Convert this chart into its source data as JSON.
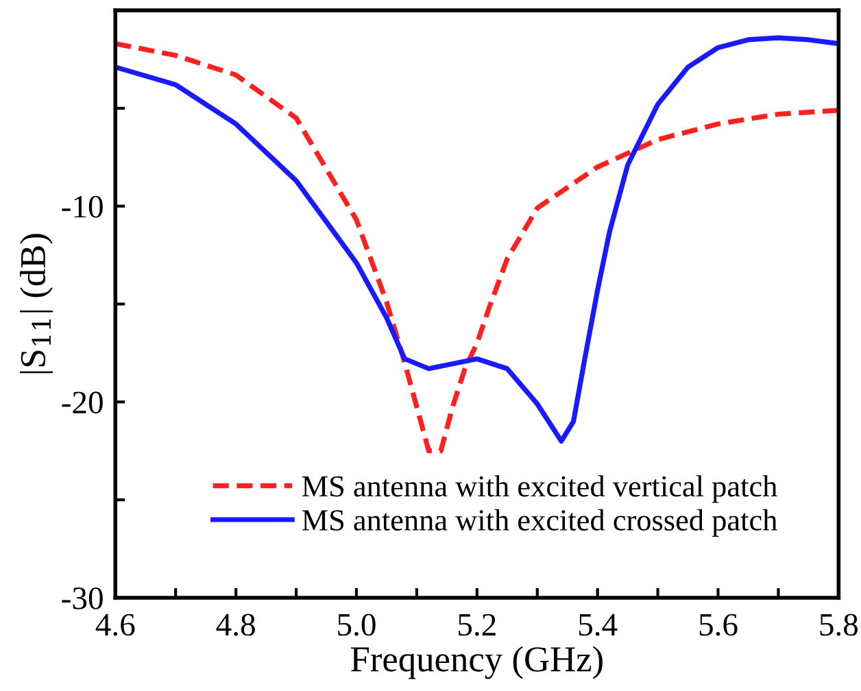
{
  "chart_data": {
    "type": "line",
    "xlabel": "Frequency (GHz)",
    "ylabel": "|S$_{11}$| (dB)",
    "xlim": [
      4.6,
      5.8
    ],
    "ylim": [
      -30,
      0
    ],
    "xticks": [
      {
        "value": 4.6,
        "label": "4.6"
      },
      {
        "value": 4.7,
        "label": null
      },
      {
        "value": 4.8,
        "label": "4.8"
      },
      {
        "value": 4.9,
        "label": null
      },
      {
        "value": 5.0,
        "label": "5.0"
      },
      {
        "value": 5.1,
        "label": null
      },
      {
        "value": 5.2,
        "label": "5.2"
      },
      {
        "value": 5.3,
        "label": null
      },
      {
        "value": 5.4,
        "label": "5.4"
      },
      {
        "value": 5.5,
        "label": null
      },
      {
        "value": 5.6,
        "label": "5.6"
      },
      {
        "value": 5.7,
        "label": null
      },
      {
        "value": 5.8,
        "label": "5.8"
      }
    ],
    "yticks": [
      -30,
      {
        "value": -25,
        "label": null
      },
      -20,
      {
        "value": -15,
        "label": null
      },
      -10,
      {
        "value": -5,
        "label": null
      }
    ],
    "grid": false,
    "legend": "bottom right",
    "marker": "none",
    "series": [
      {
        "name": "MS antenna with excited vertical patch",
        "color": "#ff2020",
        "line_style": "dashed",
        "x": [
          4.6,
          4.7,
          4.8,
          4.9,
          5.0,
          5.05,
          5.08,
          5.12,
          5.14,
          5.16,
          5.18,
          5.2,
          5.22,
          5.25,
          5.3,
          5.4,
          5.5,
          5.6,
          5.7,
          5.8
        ],
        "values": [
          -1.7,
          -2.3,
          -3.3,
          -5.5,
          -10.7,
          -14.9,
          -18.0,
          -22.5,
          -22.5,
          -20.2,
          -18.3,
          -17.0,
          -15.2,
          -12.7,
          -10.1,
          -8.0,
          -6.6,
          -5.8,
          -5.3,
          -5.1
        ]
      },
      {
        "name": "MS antenna with excited crossed patch",
        "color": "#1a1aff",
        "line_style": "solid",
        "x": [
          4.6,
          4.7,
          4.8,
          4.9,
          5.0,
          5.05,
          5.08,
          5.12,
          5.2,
          5.25,
          5.3,
          5.34,
          5.36,
          5.38,
          5.4,
          5.42,
          5.45,
          5.5,
          5.55,
          5.6,
          5.65,
          5.7,
          5.75,
          5.8
        ],
        "values": [
          -2.9,
          -3.8,
          -5.8,
          -8.7,
          -12.9,
          -15.7,
          -17.8,
          -18.3,
          -17.8,
          -18.3,
          -20.1,
          -22.0,
          -21.0,
          -17.6,
          -14.3,
          -11.3,
          -7.9,
          -4.8,
          -2.9,
          -1.9,
          -1.5,
          -1.4,
          -1.5,
          -1.7
        ]
      }
    ]
  }
}
